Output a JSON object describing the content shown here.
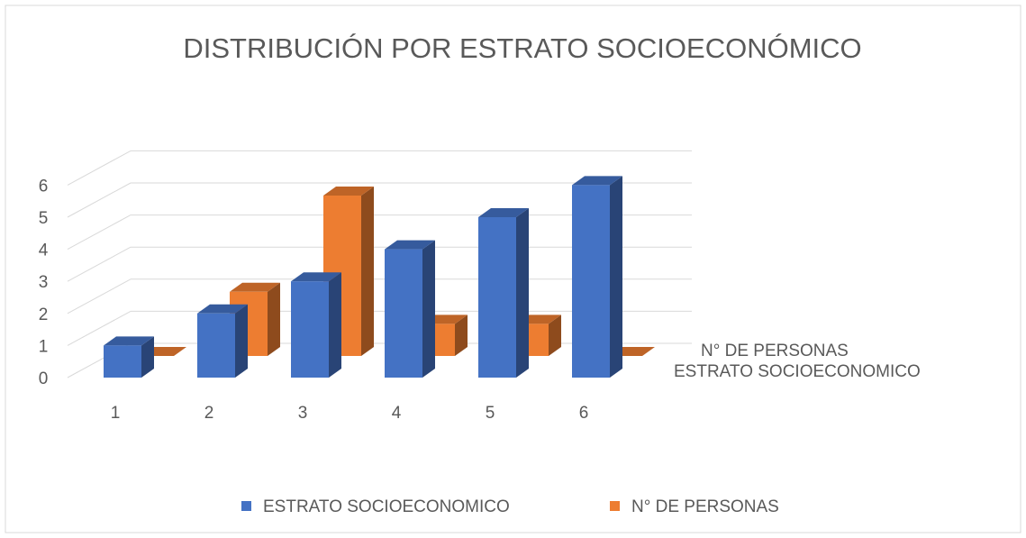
{
  "chart_data": {
    "type": "bar3d",
    "title": "DISTRIBUCIÓN POR ESTRATO SOCIOECONÓMICO",
    "categories": [
      "1",
      "2",
      "3",
      "4",
      "5",
      "6"
    ],
    "series": [
      {
        "name": "ESTRATO SOCIOECONOMICO",
        "color": "#4472c4",
        "values": [
          1,
          2,
          3,
          4,
          5,
          6
        ]
      },
      {
        "name": "N° DE PERSONAS",
        "color": "#ed7d31",
        "values": [
          0,
          2,
          5,
          1,
          1,
          0
        ]
      }
    ],
    "ylim": [
      0,
      6
    ],
    "yticks": [
      0,
      1,
      2,
      3,
      4,
      5,
      6
    ],
    "grid": true,
    "legend": "bottom"
  }
}
